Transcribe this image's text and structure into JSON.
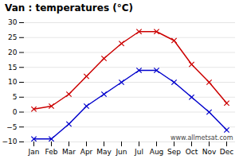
{
  "chart_data": {
    "type": "line",
    "title": "Van : temperatures (°C)",
    "categories": [
      "Jan",
      "Feb",
      "Mar",
      "Apr",
      "May",
      "Jun",
      "Jul",
      "Aug",
      "Sep",
      "Oct",
      "Nov",
      "Dec"
    ],
    "series": [
      {
        "color": "#cc0000",
        "marker": "x",
        "values": [
          1,
          2,
          6,
          12,
          18,
          23,
          27,
          27,
          24,
          16,
          10,
          3
        ]
      },
      {
        "color": "#0000cc",
        "marker": "x",
        "values": [
          -9,
          -9,
          -4,
          2,
          6,
          10,
          14,
          14,
          10,
          5,
          0,
          -6
        ]
      }
    ],
    "ylim": [
      -10,
      30
    ],
    "yticks": [
      -10,
      -5,
      0,
      5,
      10,
      15,
      20,
      25,
      30
    ],
    "grid": true,
    "annotations": [
      "www.allmetsat.com"
    ]
  }
}
